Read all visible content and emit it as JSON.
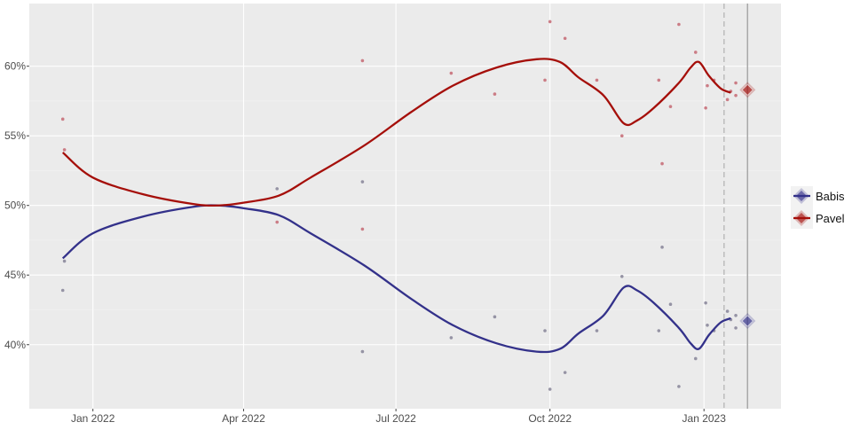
{
  "chart_data": {
    "type": "line",
    "title": "",
    "xlabel": "",
    "ylabel": "",
    "xlim": [
      "2021-11-24",
      "2023-02-16"
    ],
    "ylim": [
      35.4,
      64.5
    ],
    "grid": true,
    "legend_placement": "right",
    "x_ticks": [
      {
        "date": "2022-01-01",
        "label": "Jan 2022"
      },
      {
        "date": "2022-04-01",
        "label": "Apr 2022"
      },
      {
        "date": "2022-07-01",
        "label": "Jul 2022"
      },
      {
        "date": "2022-10-01",
        "label": "Oct 2022"
      },
      {
        "date": "2023-01-01",
        "label": "Jan 2023"
      }
    ],
    "y_ticks": [
      {
        "value": 40,
        "label": "40%"
      },
      {
        "value": 45,
        "label": "45%"
      },
      {
        "value": 50,
        "label": "50%"
      },
      {
        "value": 55,
        "label": "55%"
      },
      {
        "value": 60,
        "label": "60%"
      }
    ],
    "reference_lines": [
      {
        "date": "2023-01-13",
        "style": "dashed"
      },
      {
        "date": "2023-01-27",
        "style": "solid"
      }
    ],
    "series": [
      {
        "name": "Babis",
        "color": "#33318a",
        "point_color": "#8c8a9c",
        "trend": [
          [
            "2021-12-14",
            46.2
          ],
          [
            "2022-01-01",
            48.0
          ],
          [
            "2022-01-31",
            49.2
          ],
          [
            "2022-03-02",
            49.9
          ],
          [
            "2022-03-17",
            50.0
          ],
          [
            "2022-04-01",
            49.8
          ],
          [
            "2022-04-22",
            49.3
          ],
          [
            "2022-05-11",
            48.0
          ],
          [
            "2022-06-12",
            45.7
          ],
          [
            "2022-07-10",
            43.3
          ],
          [
            "2022-08-04",
            41.4
          ],
          [
            "2022-08-30",
            40.1
          ],
          [
            "2022-09-23",
            39.5
          ],
          [
            "2022-10-07",
            39.7
          ],
          [
            "2022-10-18",
            40.8
          ],
          [
            "2022-11-02",
            42.1
          ],
          [
            "2022-11-14",
            44.1
          ],
          [
            "2022-11-22",
            43.9
          ],
          [
            "2022-12-02",
            43.0
          ],
          [
            "2022-12-17",
            41.2
          ],
          [
            "2022-12-24",
            40.1
          ],
          [
            "2022-12-29",
            39.7
          ],
          [
            "2023-01-04",
            40.7
          ],
          [
            "2023-01-11",
            41.6
          ],
          [
            "2023-01-17",
            41.9
          ]
        ],
        "polls": [
          [
            "2021-12-14",
            43.9
          ],
          [
            "2021-12-15",
            46.0
          ],
          [
            "2022-04-21",
            51.2
          ],
          [
            "2022-06-11",
            51.7
          ],
          [
            "2022-06-11",
            39.5
          ],
          [
            "2022-08-03",
            40.5
          ],
          [
            "2022-08-29",
            42.0
          ],
          [
            "2022-09-28",
            41.0
          ],
          [
            "2022-10-01",
            36.8
          ],
          [
            "2022-10-10",
            38.0
          ],
          [
            "2022-10-29",
            41.0
          ],
          [
            "2022-11-13",
            44.9
          ],
          [
            "2022-12-05",
            41.0
          ],
          [
            "2022-12-07",
            47.0
          ],
          [
            "2022-12-12",
            42.9
          ],
          [
            "2022-12-17",
            37.0
          ],
          [
            "2022-12-27",
            39.0
          ],
          [
            "2023-01-02",
            43.0
          ],
          [
            "2023-01-03",
            41.4
          ],
          [
            "2023-01-07",
            41.0
          ],
          [
            "2023-01-15",
            42.4
          ],
          [
            "2023-01-17",
            41.8
          ],
          [
            "2023-01-20",
            42.1
          ],
          [
            "2023-01-20",
            41.2
          ]
        ],
        "result": [
          "2023-01-27",
          41.7
        ]
      },
      {
        "name": "Pavel",
        "color": "#a50f0a",
        "point_color": "#c8707a",
        "trend": [
          [
            "2021-12-14",
            53.8
          ],
          [
            "2022-01-01",
            52.0
          ],
          [
            "2022-01-31",
            50.8
          ],
          [
            "2022-03-02",
            50.1
          ],
          [
            "2022-03-17",
            50.0
          ],
          [
            "2022-04-01",
            50.2
          ],
          [
            "2022-04-22",
            50.7
          ],
          [
            "2022-05-11",
            52.0
          ],
          [
            "2022-06-12",
            54.3
          ],
          [
            "2022-07-10",
            56.7
          ],
          [
            "2022-08-04",
            58.6
          ],
          [
            "2022-08-30",
            59.9
          ],
          [
            "2022-09-23",
            60.5
          ],
          [
            "2022-10-07",
            60.3
          ],
          [
            "2022-10-18",
            59.2
          ],
          [
            "2022-11-02",
            57.9
          ],
          [
            "2022-11-14",
            55.9
          ],
          [
            "2022-11-22",
            56.1
          ],
          [
            "2022-12-02",
            57.0
          ],
          [
            "2022-12-17",
            58.8
          ],
          [
            "2022-12-24",
            59.9
          ],
          [
            "2022-12-29",
            60.3
          ],
          [
            "2023-01-04",
            59.3
          ],
          [
            "2023-01-11",
            58.4
          ],
          [
            "2023-01-17",
            58.1
          ]
        ],
        "polls": [
          [
            "2021-12-14",
            56.2
          ],
          [
            "2021-12-15",
            54.0
          ],
          [
            "2022-04-21",
            48.8
          ],
          [
            "2022-06-11",
            60.4
          ],
          [
            "2022-06-11",
            48.3
          ],
          [
            "2022-08-03",
            59.5
          ],
          [
            "2022-08-29",
            58.0
          ],
          [
            "2022-09-28",
            59.0
          ],
          [
            "2022-10-01",
            63.2
          ],
          [
            "2022-10-10",
            62.0
          ],
          [
            "2022-10-29",
            59.0
          ],
          [
            "2022-11-13",
            55.0
          ],
          [
            "2022-12-05",
            59.0
          ],
          [
            "2022-12-07",
            53.0
          ],
          [
            "2022-12-12",
            57.1
          ],
          [
            "2022-12-17",
            63.0
          ],
          [
            "2022-12-27",
            61.0
          ],
          [
            "2023-01-02",
            57.0
          ],
          [
            "2023-01-03",
            58.6
          ],
          [
            "2023-01-07",
            59.0
          ],
          [
            "2023-01-15",
            57.6
          ],
          [
            "2023-01-17",
            58.2
          ],
          [
            "2023-01-20",
            58.8
          ],
          [
            "2023-01-20",
            57.9
          ]
        ],
        "result": [
          "2023-01-27",
          58.3
        ]
      }
    ]
  }
}
